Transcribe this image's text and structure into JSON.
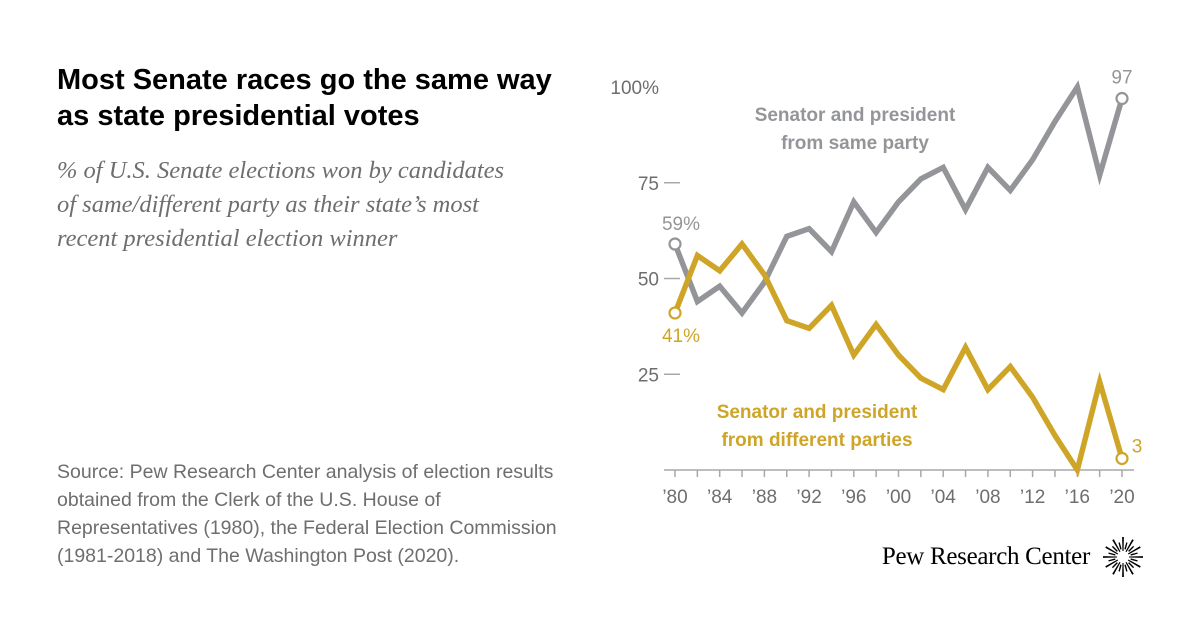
{
  "title_lines": [
    "Most Senate races go the same way",
    "as state presidential votes"
  ],
  "subtitle_lines": [
    "% of U.S. Senate elections won by candidates",
    "of same/different party as their state’s most",
    "recent presidential election winner"
  ],
  "source_lines": [
    "Source: Pew Research Center analysis of election results",
    "obtained from the Clerk of the U.S. House of",
    "Representatives (1980), the Federal Election Commission",
    "(1981-2018) and The Washington Post (2020)."
  ],
  "brand": {
    "name": "Pew Research Center",
    "logo_icon": "pew-sunburst-logo"
  },
  "colors": {
    "same": "#939598",
    "different": "#cfa528",
    "axis": "#9a9a9a",
    "text_gray": "#6e6e6e"
  },
  "chart_data": {
    "type": "line",
    "title": "Most Senate races go the same way as state presidential votes",
    "xlabel": "",
    "ylabel": "",
    "x": [
      1980,
      1982,
      1984,
      1986,
      1988,
      1990,
      1992,
      1994,
      1996,
      1998,
      2000,
      2002,
      2004,
      2006,
      2008,
      2010,
      2012,
      2014,
      2016,
      2018,
      2020
    ],
    "xlim": [
      1980,
      2020
    ],
    "ylim": [
      0,
      100
    ],
    "grid": false,
    "x_ticks": [
      1980,
      1984,
      1988,
      1992,
      1996,
      2000,
      2004,
      2008,
      2012,
      2016,
      2020
    ],
    "x_tick_labels": [
      "’80",
      "’84",
      "’88",
      "’92",
      "’96",
      "’00",
      "’04",
      "’08",
      "’12",
      "’16",
      "’20"
    ],
    "y_ticks": [
      25,
      50,
      75,
      100
    ],
    "y_tick_labels": [
      "25",
      "50",
      "75",
      "100%"
    ],
    "series": [
      {
        "name": "Senator and president from same party",
        "label_lines": [
          "Senator and president",
          "from same party"
        ],
        "color": "#939598",
        "values": [
          59,
          44,
          48,
          41,
          49,
          61,
          63,
          57,
          70,
          62,
          70,
          76,
          79,
          68,
          79,
          73,
          81,
          91,
          100,
          77,
          97
        ],
        "start_label": "59%",
        "end_label": "97"
      },
      {
        "name": "Senator and president from different parties",
        "label_lines": [
          "Senator and president",
          "from different parties"
        ],
        "color": "#cfa528",
        "values": [
          41,
          56,
          52,
          59,
          51,
          39,
          37,
          43,
          30,
          38,
          30,
          24,
          21,
          32,
          21,
          27,
          19,
          9,
          0,
          23,
          3
        ],
        "start_label": "41%",
        "end_label": "3"
      }
    ]
  }
}
